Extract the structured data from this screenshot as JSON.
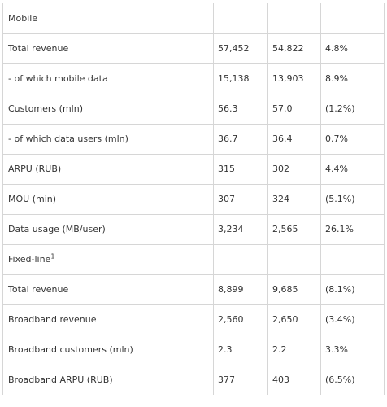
{
  "table": {
    "rows": [
      {
        "label": "Mobile",
        "section": true,
        "note": "",
        "v1": "",
        "v2": "",
        "v3": ""
      },
      {
        "label": "Total revenue",
        "section": false,
        "note": "",
        "v1": "57,452",
        "v2": "54,822",
        "v3": "4.8%"
      },
      {
        "label": "- of which mobile data",
        "section": false,
        "note": "",
        "v1": "15,138",
        "v2": "13,903",
        "v3": "8.9%"
      },
      {
        "label": "Customers (mln)",
        "section": false,
        "note": "",
        "v1": "56.3",
        "v2": "57.0",
        "v3": "(1.2%)"
      },
      {
        "label": "- of which data users (mln)",
        "section": false,
        "note": "",
        "v1": "36.7",
        "v2": "36.4",
        "v3": "0.7%"
      },
      {
        "label": "ARPU (RUB)",
        "section": false,
        "note": "",
        "v1": "315",
        "v2": "302",
        "v3": "4.4%"
      },
      {
        "label": "MOU (min)",
        "section": false,
        "note": "",
        "v1": "307",
        "v2": "324",
        "v3": "(5.1%)"
      },
      {
        "label": "Data usage (MB/user)",
        "section": false,
        "note": "",
        "v1": "3,234",
        "v2": "2,565",
        "v3": "26.1%"
      },
      {
        "label": "Fixed-line",
        "section": true,
        "note": "1",
        "v1": "",
        "v2": "",
        "v3": ""
      },
      {
        "label": "Total revenue",
        "section": false,
        "note": "",
        "v1": "8,899",
        "v2": "9,685",
        "v3": "(8.1%)"
      },
      {
        "label": "Broadband revenue",
        "section": false,
        "note": "",
        "v1": "2,560",
        "v2": "2,650",
        "v3": "(3.4%)"
      },
      {
        "label": "Broadband customers (mln)",
        "section": false,
        "note": "",
        "v1": "2.3",
        "v2": "2.2",
        "v3": "3.3%"
      },
      {
        "label": "Broadband ARPU (RUB)",
        "section": false,
        "note": "",
        "v1": "377",
        "v2": "403",
        "v3": "(6.5%)"
      }
    ]
  }
}
